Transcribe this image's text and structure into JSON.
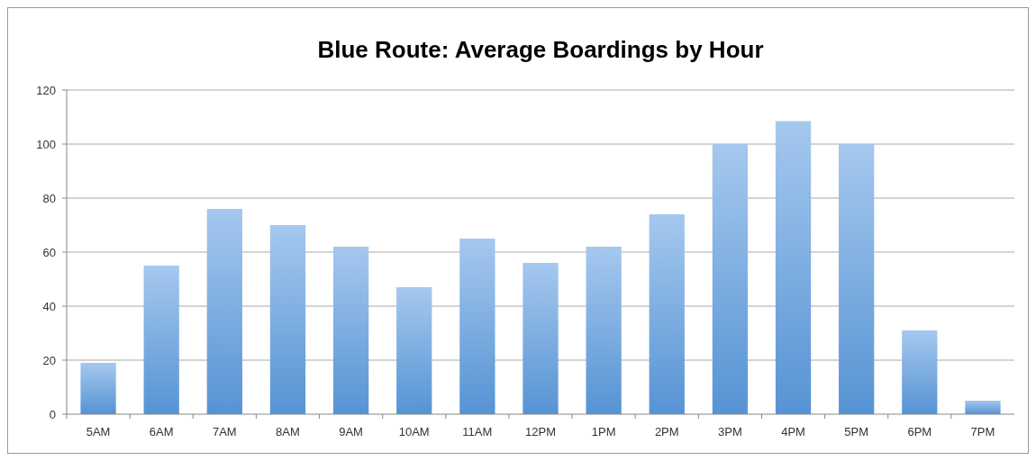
{
  "chart_data": {
    "type": "bar",
    "title": "Blue Route: Average Boardings by Hour",
    "categories": [
      "5AM",
      "6AM",
      "7AM",
      "8AM",
      "9AM",
      "10AM",
      "11AM",
      "12PM",
      "1PM",
      "2PM",
      "3PM",
      "4PM",
      "5PM",
      "6PM",
      "7PM"
    ],
    "values": [
      19,
      55,
      76,
      70,
      62,
      47,
      65,
      56,
      62,
      74,
      100,
      108.5,
      100,
      31,
      5
    ],
    "color": "#5b9be0",
    "ylim": [
      0,
      120
    ],
    "yticks": [
      0,
      20,
      40,
      60,
      80,
      100,
      120
    ],
    "grid": true
  }
}
